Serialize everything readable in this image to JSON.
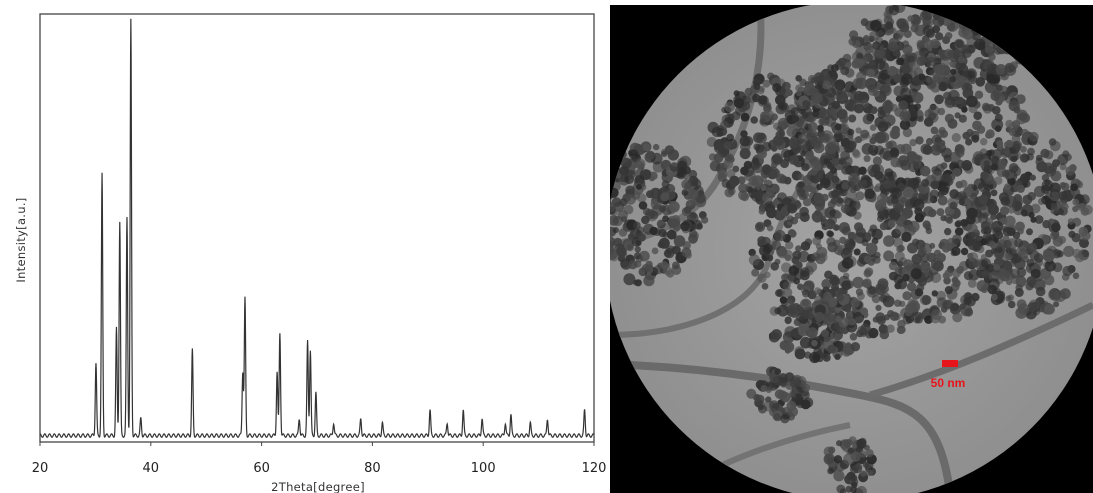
{
  "chart_data": {
    "type": "line",
    "title": "",
    "xlabel": "2Theta[degree]",
    "ylabel": "Intensity[a.u.]",
    "xlim": [
      20,
      120
    ],
    "ylim": [
      0,
      1
    ],
    "x_ticks": [
      20,
      40,
      60,
      80,
      100,
      120
    ],
    "y_ticks_shown": false,
    "grid": false,
    "legend": "none",
    "line_color": "#333333",
    "baseline": 0.015,
    "peaks": [
      {
        "x": 30.1,
        "y": 0.17
      },
      {
        "x": 31.2,
        "y": 0.61
      },
      {
        "x": 33.8,
        "y": 0.25
      },
      {
        "x": 34.4,
        "y": 0.5
      },
      {
        "x": 35.7,
        "y": 0.51
      },
      {
        "x": 36.4,
        "y": 0.97
      },
      {
        "x": 38.2,
        "y": 0.04
      },
      {
        "x": 47.5,
        "y": 0.2
      },
      {
        "x": 56.6,
        "y": 0.15
      },
      {
        "x": 57.0,
        "y": 0.32
      },
      {
        "x": 62.8,
        "y": 0.15
      },
      {
        "x": 63.3,
        "y": 0.24
      },
      {
        "x": 66.8,
        "y": 0.04
      },
      {
        "x": 68.3,
        "y": 0.22
      },
      {
        "x": 68.8,
        "y": 0.2
      },
      {
        "x": 69.8,
        "y": 0.1
      },
      {
        "x": 73.0,
        "y": 0.03
      },
      {
        "x": 77.9,
        "y": 0.04
      },
      {
        "x": 81.8,
        "y": 0.03
      },
      {
        "x": 90.4,
        "y": 0.06
      },
      {
        "x": 93.5,
        "y": 0.03
      },
      {
        "x": 96.4,
        "y": 0.06
      },
      {
        "x": 99.8,
        "y": 0.04
      },
      {
        "x": 104.0,
        "y": 0.03
      },
      {
        "x": 105.0,
        "y": 0.05
      },
      {
        "x": 108.5,
        "y": 0.03
      },
      {
        "x": 111.6,
        "y": 0.04
      },
      {
        "x": 118.3,
        "y": 0.06
      }
    ]
  },
  "micrograph": {
    "scale_bar_label": "50 nm",
    "scale_bar_color": "#e8141c",
    "background_gray": "#9a9a9a",
    "film_edge_gray": "#6e6e6e",
    "particle_gray": "#3a3a3a"
  }
}
